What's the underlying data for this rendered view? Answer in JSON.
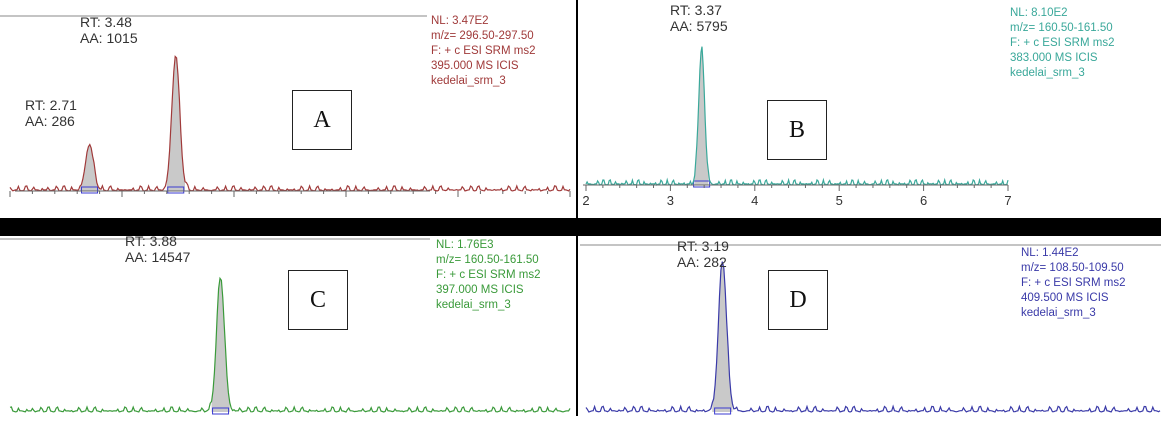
{
  "chart_data": [
    {
      "panel": "A",
      "type": "line",
      "color": "#a03a3a",
      "fill": "#c9c9c9",
      "peaks": [
        {
          "rt_label": "RT: 2.71",
          "aa_label": "AA: 286",
          "rt": 2.71,
          "height": 0.34
        },
        {
          "rt_label": "RT: 3.48",
          "aa_label": "AA: 1015",
          "rt": 3.48,
          "height": 1.0
        }
      ],
      "info": [
        "NL: 3.47E2",
        "m/z= 296.50-297.50",
        "F: + c ESI SRM ms2",
        "395.000  MS  ICIS",
        "kedelai_srm_3"
      ],
      "xlim": [
        2.0,
        7.0
      ],
      "xticks": []
    },
    {
      "panel": "B",
      "type": "line",
      "color": "#3aa89a",
      "fill": "#c9c9c9",
      "peaks": [
        {
          "rt_label": "RT: 3.37",
          "aa_label": "AA: 5795",
          "rt": 3.37,
          "height": 1.0
        }
      ],
      "info": [
        "NL: 8.10E2",
        "m/z= 160.50-161.50",
        "F: + c ESI SRM ms2",
        "383.000  MS  ICIS",
        "kedelai_srm_3"
      ],
      "xlim": [
        2.0,
        7.0
      ],
      "xticks": [
        "2",
        "3",
        "4",
        "5",
        "6",
        "7"
      ]
    },
    {
      "panel": "C",
      "type": "line",
      "color": "#3a9a3a",
      "fill": "#c9c9c9",
      "peaks": [
        {
          "rt_label": "RT: 3.88",
          "aa_label": "AA: 14547",
          "rt": 3.88,
          "height": 1.0
        }
      ],
      "info": [
        "NL: 1.76E3",
        "m/z= 160.50-161.50",
        "F: + c ESI SRM ms2",
        "397.000  MS  ICIS",
        "kedelai_srm_3"
      ],
      "xlim": [
        2.0,
        7.0
      ],
      "xticks": []
    },
    {
      "panel": "D",
      "type": "line",
      "color": "#3a3aa8",
      "fill": "#c9c9c9",
      "peaks": [
        {
          "rt_label": "RT: 3.19",
          "aa_label": "AA: 282",
          "rt": 3.19,
          "height": 1.0
        }
      ],
      "info": [
        "NL: 1.44E2",
        "m/z= 108.50-109.50",
        "F: + c ESI SRM ms2",
        "409.500  MS  ICIS",
        "kedelai_srm_3"
      ],
      "xlim": [
        2.0,
        7.0
      ],
      "xticks": []
    }
  ]
}
